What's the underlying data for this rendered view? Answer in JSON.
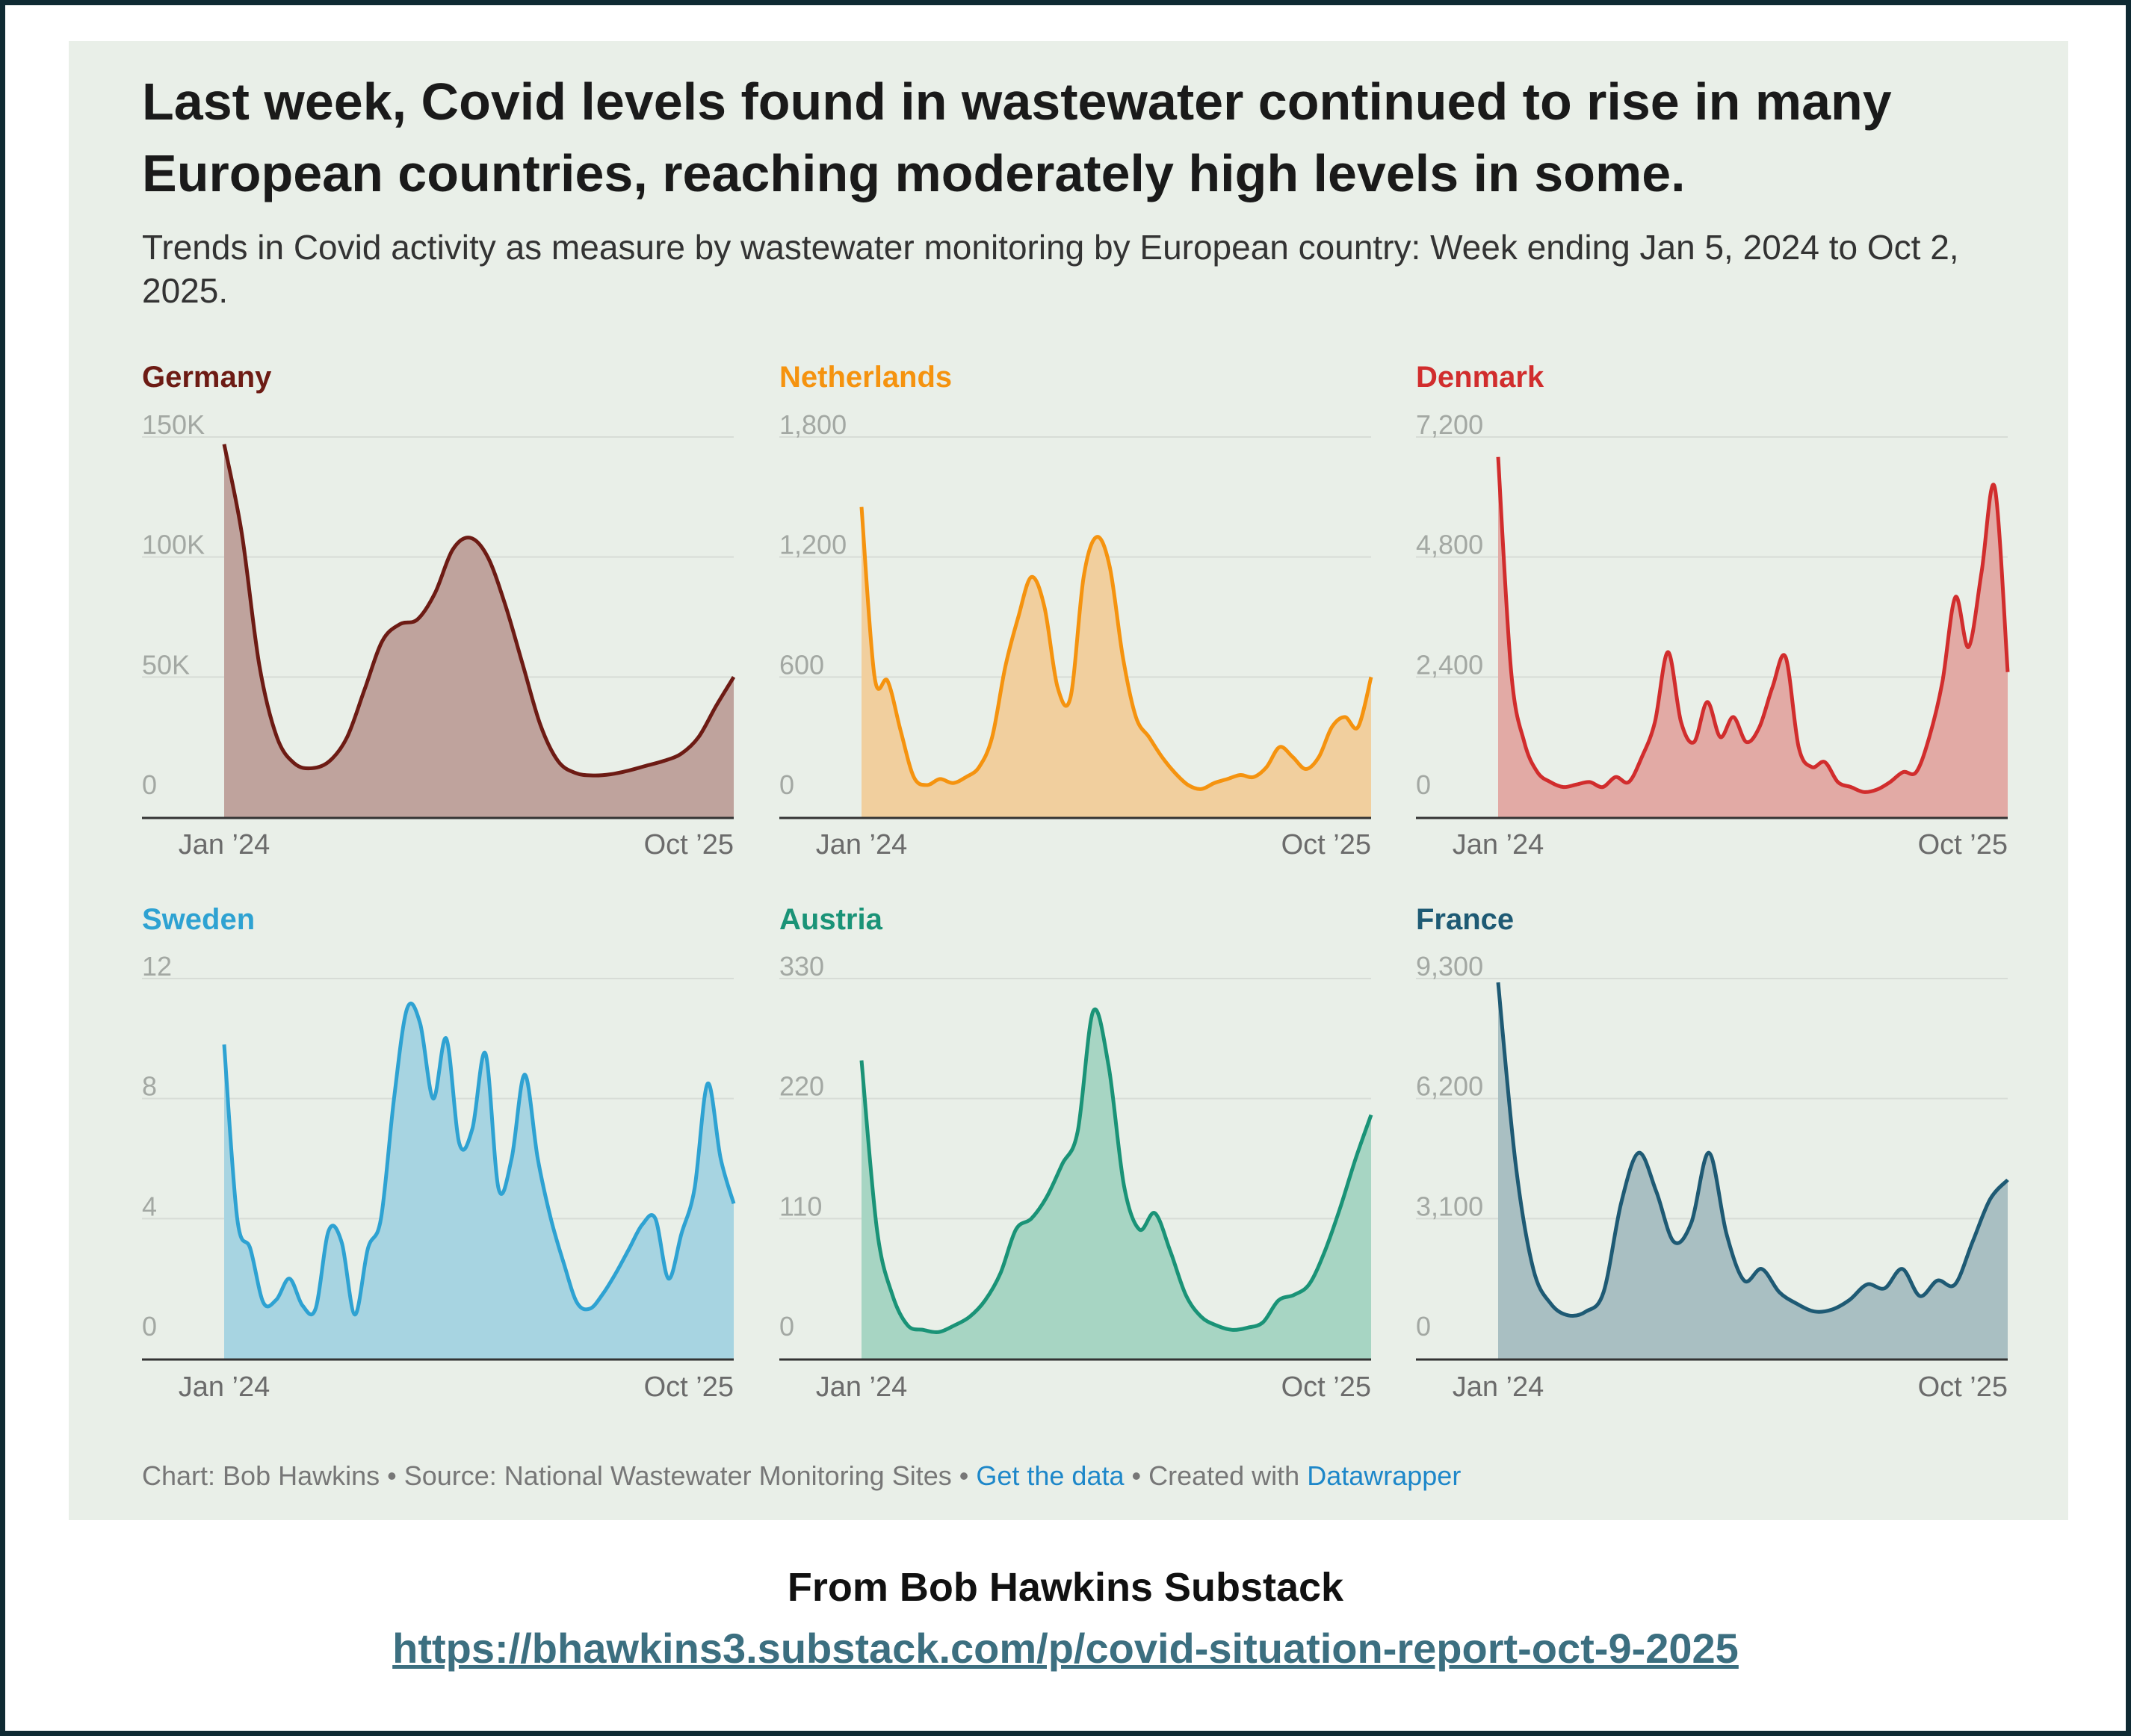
{
  "title": "Last week, Covid levels found in wastewater continued to rise in many European countries, reaching moderately high levels in some.",
  "subtitle": "Trends in Covid activity as measure by wastewater monitoring by European country: Week ending Jan 5, 2024 to Oct 2, 2025.",
  "footer": {
    "source": "Chart: Bob Hawkins • Source: National Wastewater Monitoring Sites • ",
    "get_data": "Get the data",
    "created_with": " • Created with ",
    "datawrapper": "Datawrapper"
  },
  "credit": "From Bob Hawkins Substack",
  "url": "https://bhawkins3.substack.com/p/covid-situation-report-oct-9-2025",
  "chart_data": [
    {
      "type": "area",
      "title": "Germany",
      "color": "#6d1b14",
      "fill": "#bfa39d",
      "ylim": [
        0,
        150000
      ],
      "yticks": [
        0,
        50000,
        100000,
        150000
      ],
      "ytick_labels": [
        "0",
        "50K",
        "100K",
        "150K"
      ],
      "xtick_labels": [
        "Jan ’24",
        "Oct ’25"
      ],
      "x_range": [
        "Jan 5, 2024",
        "Oct 2, 2025"
      ],
      "values": [
        147000,
        110000,
        55000,
        25000,
        14000,
        12000,
        15000,
        25000,
        45000,
        65000,
        72000,
        74000,
        85000,
        103000,
        108000,
        100000,
        80000,
        55000,
        30000,
        15000,
        10000,
        9000,
        9500,
        11000,
        13000,
        15000,
        18000,
        25000,
        38000,
        50000
      ]
    },
    {
      "type": "area",
      "title": "Netherlands",
      "color": "#f5930f",
      "fill": "#f1cf9e",
      "ylim": [
        0,
        1800
      ],
      "yticks": [
        0,
        600,
        1200,
        1800
      ],
      "ytick_labels": [
        "0",
        "600",
        "1,200",
        "1,800"
      ],
      "xtick_labels": [
        "Jan ’24",
        "Oct ’25"
      ],
      "x_range": [
        "Jan 5, 2024",
        "Oct 2, 2025"
      ],
      "values": [
        1450,
        600,
        580,
        330,
        100,
        60,
        90,
        70,
        100,
        150,
        300,
        650,
        900,
        1100,
        950,
        550,
        500,
        1100,
        1300,
        1150,
        700,
        400,
        300,
        200,
        120,
        60,
        40,
        70,
        90,
        110,
        100,
        150,
        250,
        200,
        140,
        200,
        350,
        400,
        350,
        600
      ]
    },
    {
      "type": "area",
      "title": "Denmark",
      "color": "#d12d2d",
      "fill": "#e2aaa5",
      "ylim": [
        0,
        7200
      ],
      "yticks": [
        0,
        2400,
        4800,
        7200
      ],
      "ytick_labels": [
        "0",
        "2,400",
        "4,800",
        "7,200"
      ],
      "xtick_labels": [
        "Jan ’24",
        "Oct ’25"
      ],
      "x_range": [
        "Jan 5, 2024",
        "Oct 2, 2025"
      ],
      "values": [
        6800,
        2500,
        1100,
        500,
        300,
        200,
        250,
        300,
        200,
        400,
        300,
        800,
        1500,
        2900,
        1500,
        1100,
        1900,
        1200,
        1600,
        1100,
        1400,
        2200,
        2800,
        1000,
        600,
        700,
        300,
        200,
        100,
        150,
        300,
        500,
        500,
        1200,
        2300,
        4000,
        3000,
        4500,
        6200,
        2500
      ]
    },
    {
      "type": "area",
      "title": "Sweden",
      "color": "#2ea2d2",
      "fill": "#a7d4e1",
      "ylim": [
        0,
        12
      ],
      "yticks": [
        0,
        4,
        8,
        12
      ],
      "ytick_labels": [
        "0",
        "4",
        "8",
        "12"
      ],
      "xtick_labels": [
        "Jan ’24",
        "Oct ’25"
      ],
      "x_range": [
        "Jan 5, 2024",
        "Oct 2, 2025"
      ],
      "values": [
        9.8,
        4.0,
        3.0,
        1.2,
        1.3,
        2.0,
        1.1,
        1.0,
        3.6,
        3.2,
        0.8,
        3.0,
        4.0,
        8.0,
        11.0,
        10.5,
        8.0,
        10.0,
        6.5,
        7.0,
        9.5,
        5.0,
        6.0,
        8.8,
        6.0,
        4.0,
        2.5,
        1.2,
        1.0,
        1.5,
        2.2,
        3.0,
        3.8,
        4.0,
        2.0,
        3.5,
        5.0,
        8.5,
        6.0,
        4.5
      ]
    },
    {
      "type": "area",
      "title": "Austria",
      "color": "#1a9377",
      "fill": "#a7d5c3",
      "ylim": [
        0,
        330
      ],
      "yticks": [
        0,
        110,
        220,
        330
      ],
      "ytick_labels": [
        "0",
        "110",
        "220",
        "330"
      ],
      "xtick_labels": [
        "Jan ’24",
        "Oct ’25"
      ],
      "x_range": [
        "Jan 5, 2024",
        "Oct 2, 2025"
      ],
      "values": [
        255,
        100,
        40,
        12,
        8,
        6,
        12,
        20,
        35,
        60,
        100,
        110,
        130,
        160,
        190,
        300,
        250,
        140,
        100,
        115,
        80,
        40,
        20,
        12,
        8,
        10,
        15,
        35,
        40,
        50,
        80,
        120,
        165,
        205
      ]
    },
    {
      "type": "area",
      "title": "France",
      "color": "#1e5a74",
      "fill": "#a9bfc2",
      "ylim": [
        0,
        9300
      ],
      "yticks": [
        0,
        3100,
        6200,
        9300
      ],
      "ytick_labels": [
        "0",
        "3,100",
        "6,200",
        "9,300"
      ],
      "xtick_labels": [
        "Jan ’24",
        "Oct ’25"
      ],
      "x_range": [
        "Jan 5, 2024",
        "Oct 2, 2025"
      ],
      "values": [
        9200,
        4500,
        1800,
        900,
        600,
        700,
        1200,
        3500,
        4800,
        3800,
        2500,
        3000,
        4800,
        2700,
        1500,
        1800,
        1200,
        900,
        700,
        750,
        1000,
        1400,
        1300,
        1800,
        1100,
        1500,
        1400,
        2500,
        3600,
        4100
      ]
    }
  ]
}
